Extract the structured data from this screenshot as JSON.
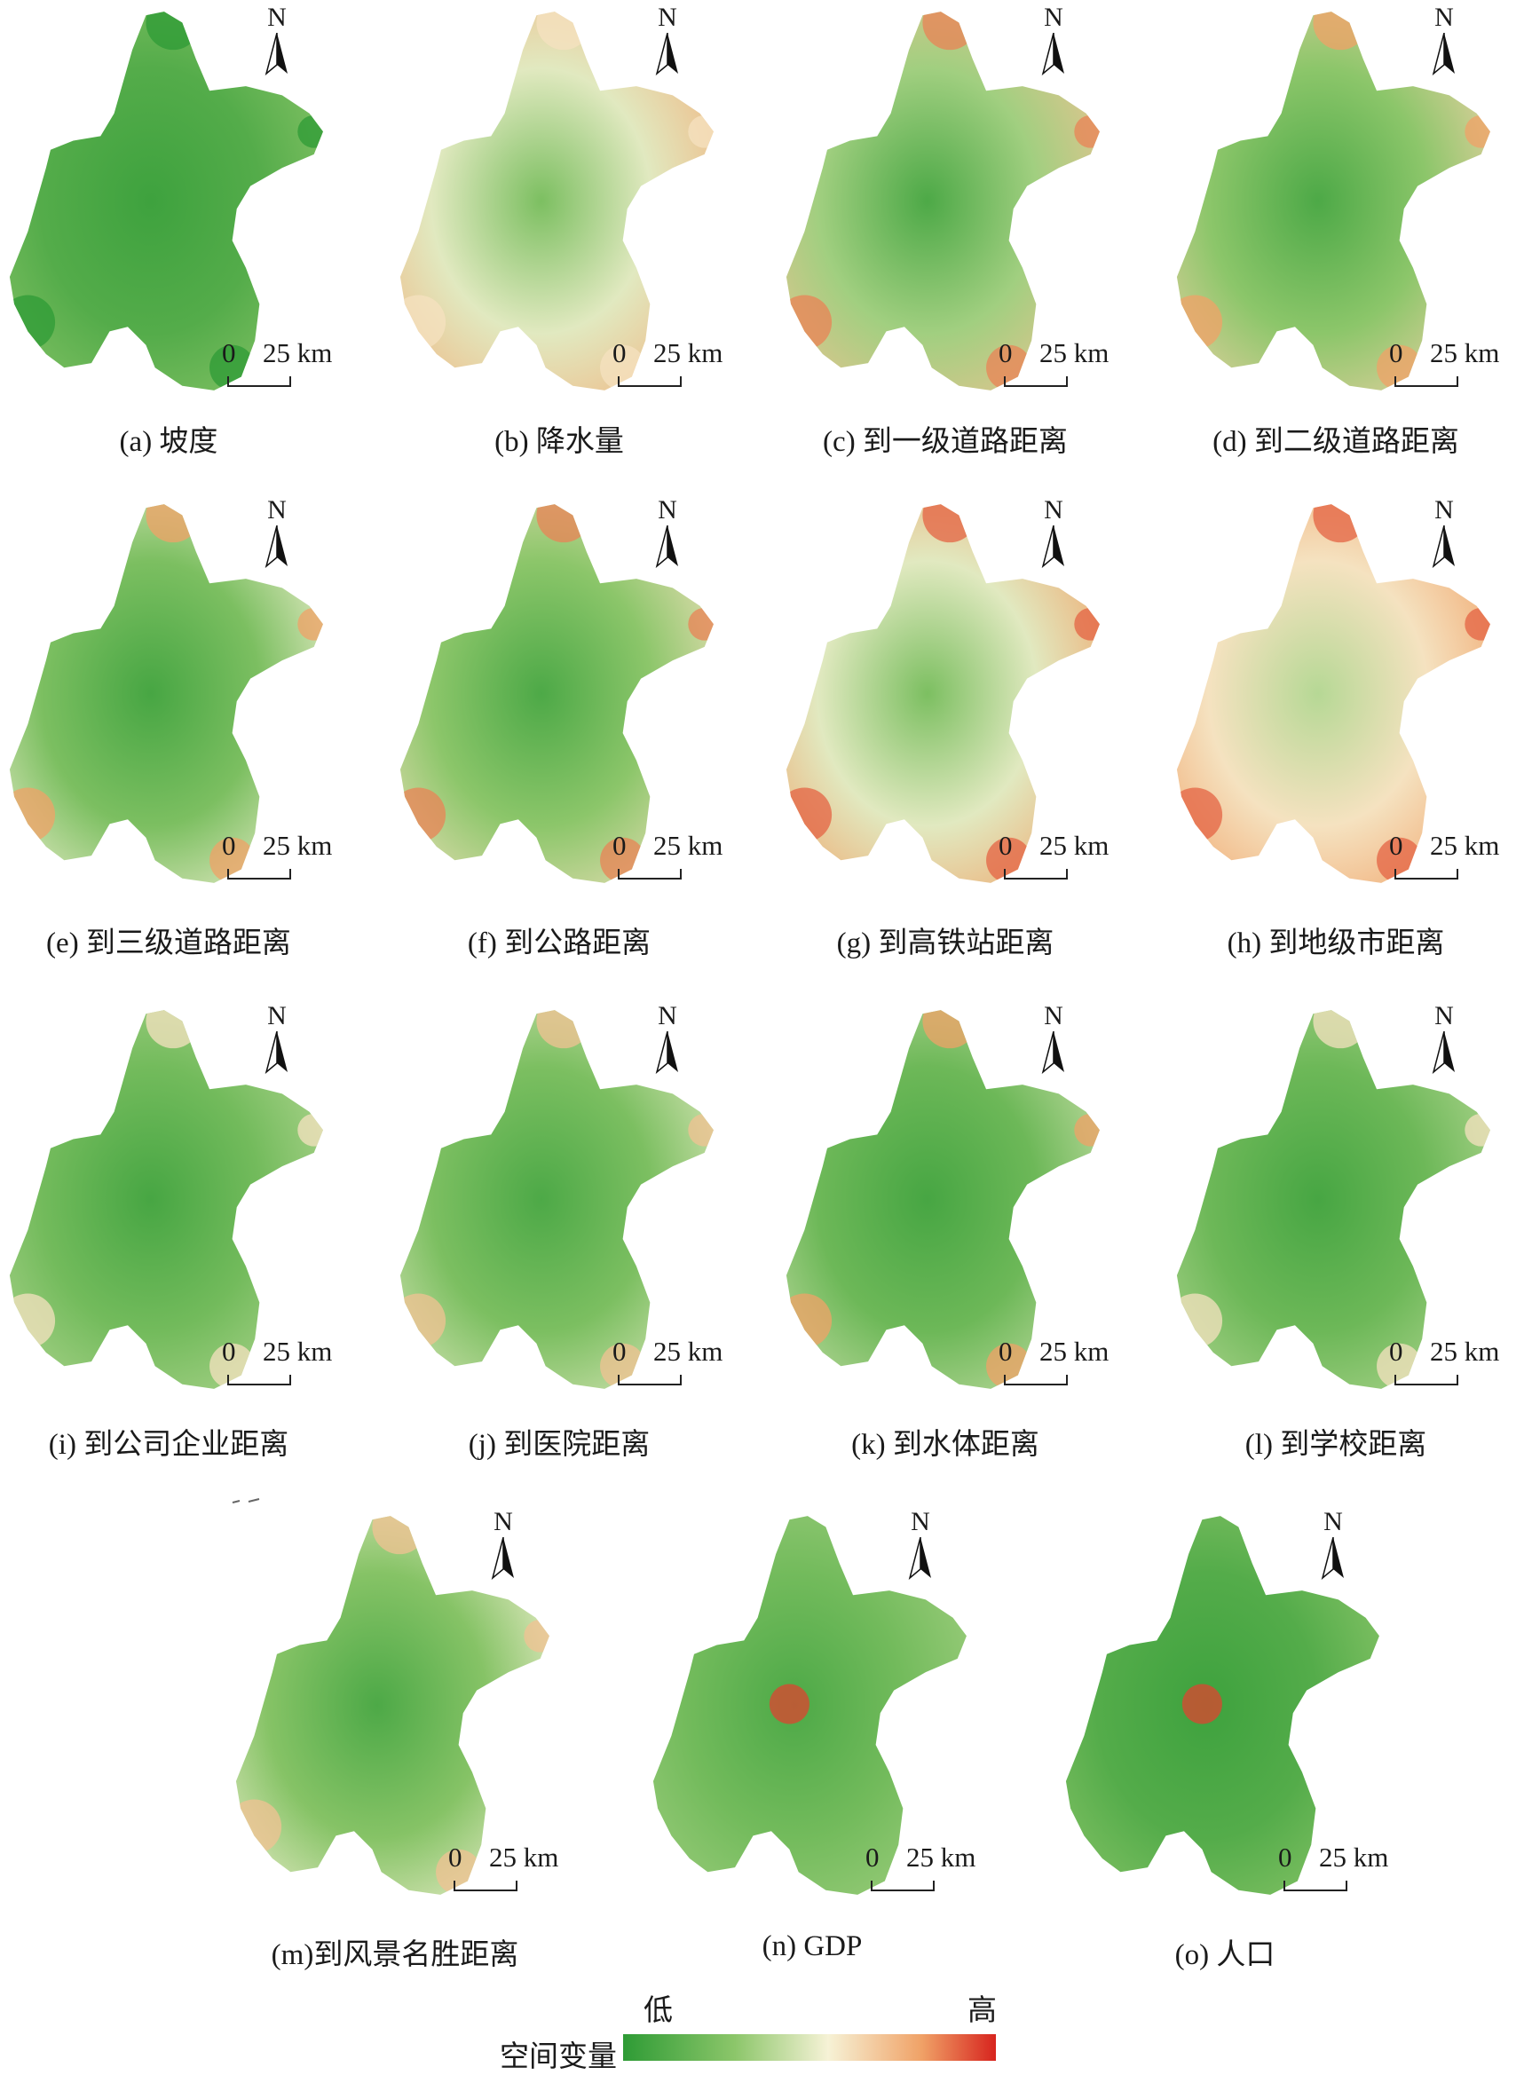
{
  "north_label": "N",
  "scale": {
    "zero": "0",
    "distance": "25 km"
  },
  "panels": [
    {
      "id": "a",
      "caption": "(a) 坡度",
      "ramp": [
        0.05,
        0.12,
        0.3
      ],
      "hot": 0.0
    },
    {
      "id": "b",
      "caption": "(b) 降水量",
      "ramp": [
        0.25,
        0.5,
        0.75
      ],
      "hot": 0.6
    },
    {
      "id": "c",
      "caption": "(c) 到一级道路距离",
      "ramp": [
        0.1,
        0.35,
        0.7
      ],
      "hot": 0.85
    },
    {
      "id": "d",
      "caption": "(d) 到二级道路距离",
      "ramp": [
        0.1,
        0.3,
        0.65
      ],
      "hot": 0.8
    },
    {
      "id": "e",
      "caption": "(e) 到三级道路距离",
      "ramp": [
        0.08,
        0.25,
        0.55
      ],
      "hot": 0.8
    },
    {
      "id": "f",
      "caption": "(f) 到公路距离",
      "ramp": [
        0.1,
        0.3,
        0.6
      ],
      "hot": 0.85
    },
    {
      "id": "g",
      "caption": "(g) 到高铁站距离",
      "ramp": [
        0.25,
        0.5,
        0.8
      ],
      "hot": 0.9
    },
    {
      "id": "h",
      "caption": "(h) 到地级市距离",
      "ramp": [
        0.4,
        0.6,
        0.8
      ],
      "hot": 0.9
    },
    {
      "id": "i",
      "caption": "(i) 到公司企业距离",
      "ramp": [
        0.08,
        0.22,
        0.4
      ],
      "hot": 0.6
    },
    {
      "id": "j",
      "caption": "(j) 到医院距离",
      "ramp": [
        0.1,
        0.25,
        0.5
      ],
      "hot": 0.7
    },
    {
      "id": "k",
      "caption": "(k) 到水体距离",
      "ramp": [
        0.08,
        0.2,
        0.45
      ],
      "hot": 0.8
    },
    {
      "id": "l",
      "caption": "(l) 到学校距离",
      "ramp": [
        0.08,
        0.2,
        0.4
      ],
      "hot": 0.6
    },
    {
      "id": "m",
      "caption": "(m)到风景名胜距离",
      "ramp": [
        0.1,
        0.28,
        0.55
      ],
      "hot": 0.7
    },
    {
      "id": "n",
      "caption": "(n) GDP",
      "ramp": [
        0.1,
        0.22,
        0.35
      ],
      "hot": 0.95
    },
    {
      "id": "o",
      "caption": "(o) 人口",
      "ramp": [
        0.05,
        0.12,
        0.3
      ],
      "hot": 0.95
    }
  ],
  "legend": {
    "title": "空间变量",
    "low": "低",
    "high": "高",
    "colors": [
      "#2e9b35",
      "#8cc66a",
      "#f6f2d6",
      "#f0a267",
      "#d7241e"
    ]
  }
}
